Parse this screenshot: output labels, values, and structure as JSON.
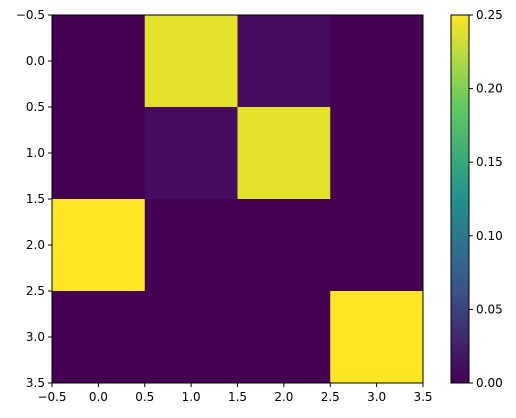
{
  "chart_data": {
    "type": "heatmap",
    "title": "",
    "xlabel": "",
    "ylabel": "",
    "xlim": [
      -0.5,
      3.5
    ],
    "ylim": [
      3.5,
      -0.5
    ],
    "xticks": [
      -0.5,
      0.0,
      0.5,
      1.0,
      1.5,
      2.0,
      2.5,
      3.0,
      3.5
    ],
    "yticks": [
      -0.5,
      0.0,
      0.5,
      1.0,
      1.5,
      2.0,
      2.5,
      3.0,
      3.5
    ],
    "xtick_labels": [
      "−0.5",
      "0.0",
      "0.5",
      "1.0",
      "1.5",
      "2.0",
      "2.5",
      "3.0",
      "3.5"
    ],
    "ytick_labels": [
      "−0.5",
      "0.0",
      "0.5",
      "1.0",
      "1.5",
      "2.0",
      "2.5",
      "3.0",
      "3.5"
    ],
    "matrix": [
      [
        0.0,
        0.24,
        0.01,
        0.0
      ],
      [
        0.0,
        0.01,
        0.24,
        0.0
      ],
      [
        0.25,
        0.0,
        0.0,
        0.0
      ],
      [
        0.0,
        0.0,
        0.0,
        0.25
      ]
    ],
    "colormap": "viridis",
    "colorbar": {
      "vmin": 0.0,
      "vmax": 0.25,
      "ticks": [
        0.0,
        0.05,
        0.1,
        0.15,
        0.2,
        0.25
      ],
      "tick_labels": [
        "0.00",
        "0.05",
        "0.10",
        "0.15",
        "0.20",
        "0.25"
      ]
    }
  }
}
